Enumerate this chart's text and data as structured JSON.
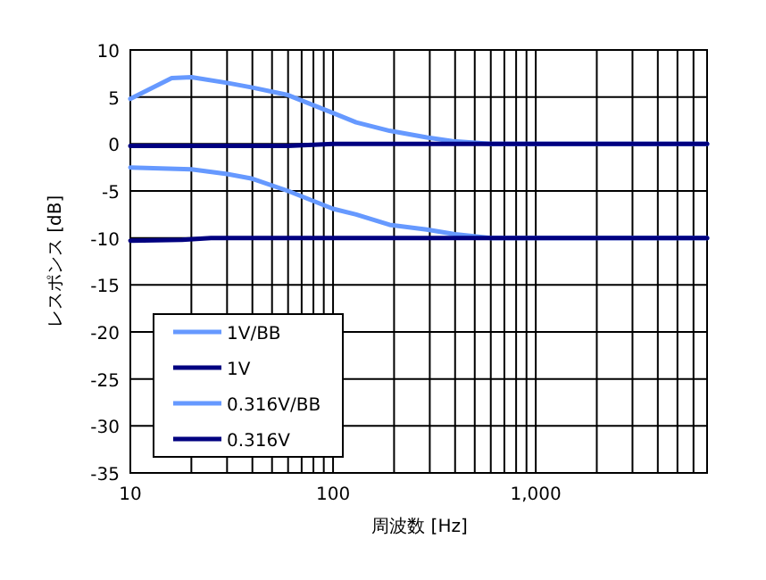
{
  "chart_data": {
    "type": "line",
    "xlabel": "周波数 [Hz]",
    "ylabel": "レスポンス [dB]",
    "log": "x",
    "xlim": [
      10,
      7000
    ],
    "ylim": [
      -35,
      10
    ],
    "xticks": [
      10,
      {
        "value": 20,
        "label": null
      },
      {
        "value": 30,
        "label": null
      },
      {
        "value": 40,
        "label": null
      },
      {
        "value": 50,
        "label": null
      },
      {
        "value": 60,
        "label": null
      },
      {
        "value": 70,
        "label": null
      },
      {
        "value": 80,
        "label": null
      },
      {
        "value": 90,
        "label": null
      },
      100,
      {
        "value": 200,
        "label": null
      },
      {
        "value": 300,
        "label": null
      },
      {
        "value": 400,
        "label": null
      },
      {
        "value": 500,
        "label": null
      },
      {
        "value": 600,
        "label": null
      },
      {
        "value": 700,
        "label": null
      },
      {
        "value": 800,
        "label": null
      },
      {
        "value": 900,
        "label": null
      },
      {
        "value": 1000,
        "label": "1,000"
      },
      {
        "value": 2000,
        "label": null
      },
      {
        "value": 3000,
        "label": null
      },
      {
        "value": 4000,
        "label": null
      },
      {
        "value": 5000,
        "label": null
      },
      {
        "value": 6000,
        "label": null
      }
    ],
    "yticks": [
      10,
      5,
      0,
      -5,
      -10,
      -15,
      -20,
      -25,
      -30,
      -35
    ],
    "grid": true,
    "legend": "bottom left",
    "line_style": "solid",
    "marker": "none",
    "series": [
      {
        "name": "1V/BB",
        "color": "#6699ff",
        "x": [
          10,
          16,
          20,
          30,
          40,
          60,
          100,
          130,
          190,
          290,
          390,
          600,
          7000
        ],
        "values": [
          4.8,
          7.0,
          7.1,
          6.5,
          6.0,
          5.2,
          3.3,
          2.3,
          1.4,
          0.7,
          0.3,
          0,
          0
        ]
      },
      {
        "name": "1V",
        "color": "#000080",
        "x": [
          10,
          60,
          100,
          7000
        ],
        "values": [
          -0.2,
          -0.2,
          0,
          0
        ]
      },
      {
        "name": "0.316V/BB",
        "color": "#6699ff",
        "x": [
          10,
          20,
          30,
          40,
          60,
          100,
          130,
          190,
          290,
          400,
          600,
          7000
        ],
        "values": [
          -2.5,
          -2.7,
          -3.2,
          -3.7,
          -5.0,
          -6.9,
          -7.5,
          -8.6,
          -9.1,
          -9.6,
          -10,
          -10
        ]
      },
      {
        "name": "0.316V",
        "color": "#000080",
        "x": [
          10,
          18,
          25,
          7000
        ],
        "values": [
          -10.3,
          -10.2,
          -10,
          -10
        ]
      }
    ]
  }
}
